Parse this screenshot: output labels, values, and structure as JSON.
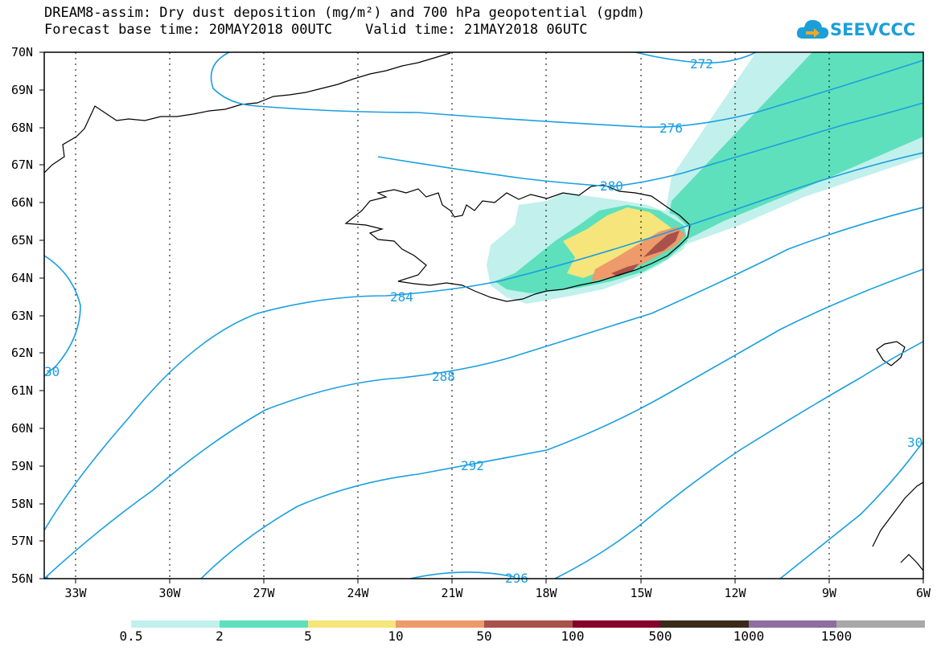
{
  "title": {
    "line1": "DREAM8-assim: Dry dust deposition (mg/m²) and 700 hPa geopotential (gpdm)",
    "line2": "Forecast base time: 20MAY2018 00UTC    Valid time: 21MAY2018 06UTC"
  },
  "logo": {
    "text": "SEEVCCC",
    "icon": "cloud-arrow-icon",
    "color": "#1a9fd9"
  },
  "axes": {
    "lat_labels": [
      "70N",
      "69N",
      "68N",
      "67N",
      "66N",
      "65N",
      "64N",
      "63N",
      "62N",
      "61N",
      "60N",
      "59N",
      "58N",
      "57N",
      "56N"
    ],
    "lon_labels": [
      "33W",
      "30W",
      "27W",
      "24W",
      "21W",
      "18W",
      "15W",
      "12W",
      "9W",
      "6W"
    ]
  },
  "contours": {
    "color": "#1a9fe0",
    "labels": [
      "272",
      "276",
      "280",
      "284",
      "288",
      "292",
      "296",
      "30",
      "30"
    ]
  },
  "legend": {
    "thresholds": [
      "0.5",
      "2",
      "5",
      "10",
      "50",
      "100",
      "500",
      "1000",
      "1500"
    ],
    "colors": [
      "#c2f0ec",
      "#5ee0bc",
      "#f5e57a",
      "#ee9a6a",
      "#a9514a",
      "#85002c",
      "#3b2a1a",
      "#8c6fa0",
      "#a8a8a8"
    ]
  }
}
